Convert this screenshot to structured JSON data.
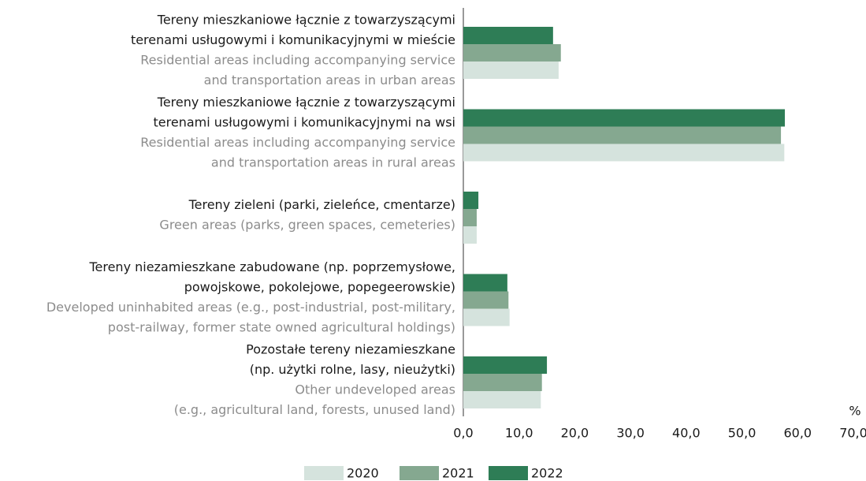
{
  "chart_data": {
    "type": "bar",
    "orientation": "horizontal",
    "categories": [
      {
        "pl": [
          "Tereny mieszkaniowe łącznie z towarzyszącymi",
          "terenami usługowymi i komunikacyjnymi w mieście"
        ],
        "en": [
          "Residential areas including accompanying service",
          "and transportation areas in urban areas"
        ]
      },
      {
        "pl": [
          "Tereny mieszkaniowe łącznie z towarzyszącymi",
          "terenami usługowymi  i komunikacyjnymi na wsi"
        ],
        "en": [
          "Residential areas including accompanying service",
          "and transportation areas in rural areas"
        ]
      },
      {
        "pl": [
          "Tereny zieleni (parki, zieleńce,  cmentarze)"
        ],
        "en": [
          "Green areas (parks, green spaces, cemeteries)"
        ]
      },
      {
        "pl": [
          "Tereny niezamieszkane zabudowane (np. poprzemysłowe,",
          "powojskowe, pokolejowe, popegeerowskie)"
        ],
        "en": [
          "Developed uninhabited areas (e.g., post-industrial, post-military,",
          "post-railway, former state owned agricultural holdings)"
        ]
      },
      {
        "pl": [
          "Pozostałe tereny niezamieszkane",
          "(np. użytki rolne, lasy, nieużytki)"
        ],
        "en": [
          "Other undeveloped areas",
          "(e.g., agricultural land, forests, unused land)"
        ]
      }
    ],
    "series": [
      {
        "name": "2020",
        "color": "#d5e3dd",
        "values": [
          17.1,
          57.6,
          2.4,
          8.3,
          13.9
        ]
      },
      {
        "name": "2021",
        "color": "#85a890",
        "values": [
          17.5,
          57.0,
          2.4,
          8.1,
          14.1
        ]
      },
      {
        "name": "2022",
        "color": "#2e7d56",
        "values": [
          16.1,
          57.7,
          2.7,
          7.9,
          15.0
        ]
      }
    ],
    "x_unit": "%",
    "xlim": [
      0,
      70
    ],
    "xticks": [
      {
        "value": 0,
        "label": "0,0"
      },
      {
        "value": 10,
        "label": "10,0"
      },
      {
        "value": 20,
        "label": "20,0"
      },
      {
        "value": 30,
        "label": "30,0"
      },
      {
        "value": 40,
        "label": "40,0"
      },
      {
        "value": 50,
        "label": "50,0"
      },
      {
        "value": 60,
        "label": "60,0"
      },
      {
        "value": 70,
        "label": "70,0"
      }
    ],
    "grid": false,
    "legend": "bottom"
  }
}
